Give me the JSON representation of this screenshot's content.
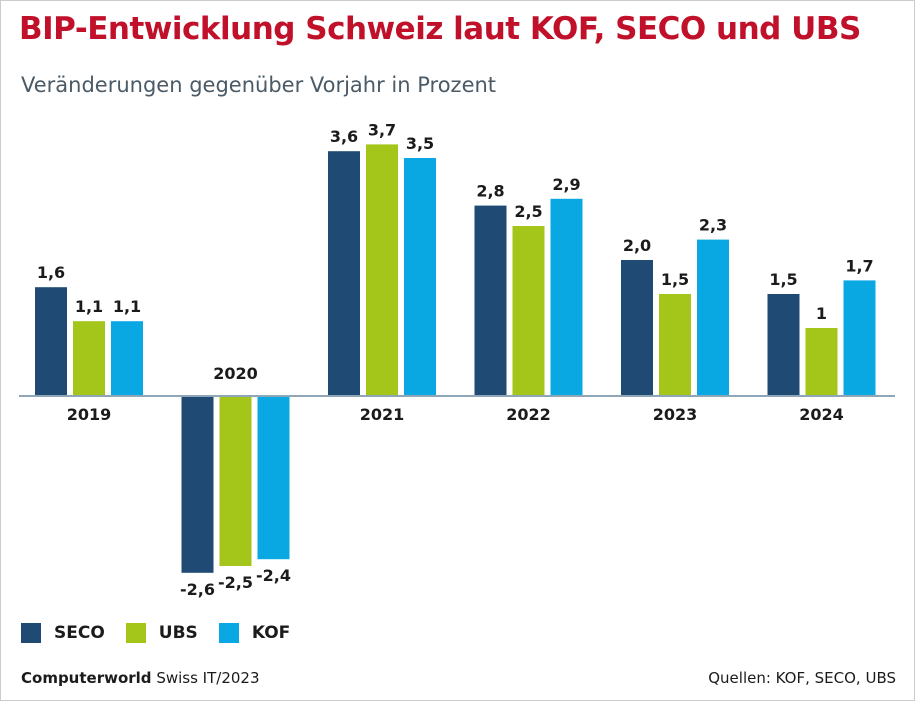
{
  "chart_data": {
    "type": "bar",
    "title": "BIP-Entwicklung Schweiz laut KOF, SECO und UBS",
    "subtitle": "Veränderungen gegenüber Vorjahr in Prozent",
    "categories": [
      "2019",
      "2020",
      "2021",
      "2022",
      "2023",
      "2024"
    ],
    "series": [
      {
        "name": "SECO",
        "color": "#1f4a73",
        "values": [
          1.6,
          -2.6,
          3.6,
          2.8,
          2.0,
          1.5
        ],
        "labels": [
          "1,6",
          "-2,6",
          "3,6",
          "2,8",
          "2,0",
          "1,5"
        ]
      },
      {
        "name": "UBS",
        "color": "#a4c519",
        "values": [
          1.1,
          -2.5,
          3.7,
          2.5,
          1.5,
          1.0
        ],
        "labels": [
          "1,1",
          "-2,5",
          "3,7",
          "2,5",
          "1,5",
          "1"
        ]
      },
      {
        "name": "KOF",
        "color": "#0aa8e2",
        "values": [
          1.1,
          -2.4,
          3.5,
          2.9,
          2.3,
          1.7
        ],
        "labels": [
          "1,1",
          "-2,4",
          "3,5",
          "2,9",
          "2,3",
          "1,7"
        ]
      }
    ],
    "ylim": [
      -2.6,
      3.7
    ],
    "xlabel": "",
    "ylabel": "",
    "grid": false,
    "legend": "bottom-left",
    "zero_line_color": "#8fa5b8"
  },
  "footer": {
    "brand": "Computerworld",
    "edition": "Swiss IT/2023",
    "sources": "Quellen: KOF, SECO, UBS"
  }
}
